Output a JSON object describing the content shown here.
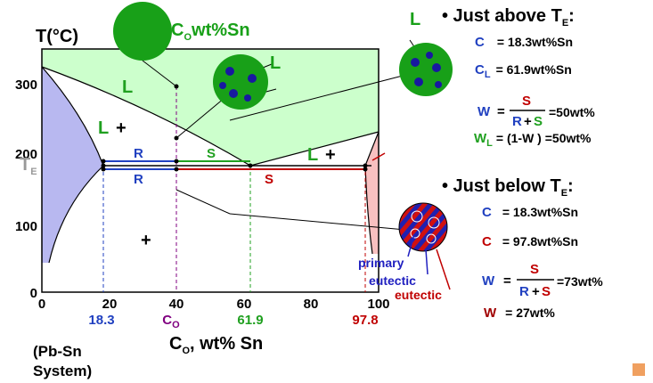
{
  "axis": {
    "y_title": "T(°C)",
    "y_ticks": [
      "300",
      "200",
      "100",
      "0"
    ],
    "te_main": "T",
    "te_sub": "E",
    "x_ticks": [
      "0",
      "20",
      "40",
      "60",
      "80",
      "100"
    ],
    "x_title": {
      "main": "C",
      "sub": "O",
      "rest": ", wt% Sn"
    },
    "x_marks": [
      "18.3",
      "C",
      "61.9",
      "97.8"
    ],
    "x_mark_sub": "O"
  },
  "system": [
    "(Pb-Sn",
    "System)"
  ],
  "regions": [
    "L",
    "L",
    "+",
    "+",
    "L",
    "+"
  ],
  "tie_labels": [
    "R",
    "S",
    "R",
    "S"
  ],
  "circle_labels": {
    "composition_main": "C",
    "composition_sub": "O",
    "composition_rest": "wt%Sn",
    "liquid_1": "L",
    "liquid_2": "L"
  },
  "above": {
    "heading_main": "• Just above T",
    "heading_sub": "E",
    "heading_end": ":",
    "c_alpha": {
      "sym": "C",
      "text": "= 18.3wt%Sn"
    },
    "c_l": {
      "sym": "C",
      "sub": "L",
      "text": "= 61.9wt%Sn"
    },
    "w_alpha": {
      "sym": "W",
      "eq": "=",
      "num": "S",
      "den_r": "R",
      "den_plus": "+",
      "den_s": "S",
      "result": "=50wt%"
    },
    "w_l": {
      "sym": "W",
      "sub": "L",
      "text": "= (1-W ) =50wt%"
    }
  },
  "below": {
    "heading_main": "• Just below T",
    "heading_sub": "E",
    "heading_end": ":",
    "c_alpha": {
      "sym": "C",
      "text": "= 18.3wt%Sn"
    },
    "c_beta": {
      "sym": "C",
      "text": "= 97.8wt%Sn"
    },
    "w_alpha": {
      "sym": "W",
      "eq": "=",
      "num": "S",
      "den_r": "R",
      "den_plus": "+",
      "den_s": "S",
      "result": "=73wt%"
    },
    "w_beta": {
      "sym": "W",
      "text": "= 27wt%"
    }
  },
  "microstructure_labels": [
    "primary",
    "eutectic",
    "eutectic"
  ]
}
